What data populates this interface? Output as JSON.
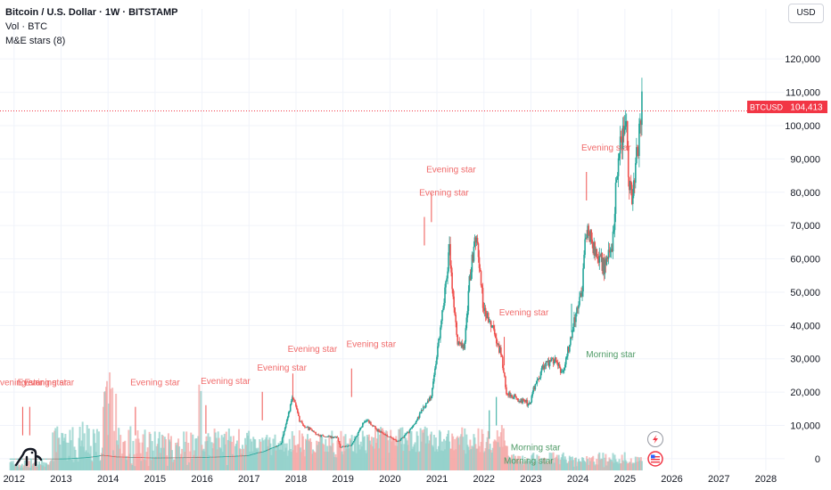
{
  "header": {
    "title": "Bitcoin / U.S. Dollar · 1W · BITSTAMP",
    "volume_label": "Vol · BTC",
    "indicator_label": "M&E stars (8)"
  },
  "currency_button": "USD",
  "price_badge": {
    "symbol": "BTCUSD",
    "value": "104,413"
  },
  "colors": {
    "up": "#26a69a",
    "down": "#ef5350",
    "evening_text": "#f06a6a",
    "morning_text": "#4e9a66",
    "price_line": "#f23645"
  },
  "chart_data": {
    "type": "candlestick",
    "title": "Bitcoin / U.S. Dollar · 1W · BITSTAMP",
    "y_ticks": [
      "0",
      "10,000",
      "20,000",
      "30,000",
      "40,000",
      "50,000",
      "60,000",
      "70,000",
      "80,000",
      "90,000",
      "100,000",
      "110,000",
      "120,000"
    ],
    "y_tick_values": [
      0,
      10000,
      20000,
      30000,
      40000,
      50000,
      60000,
      70000,
      80000,
      90000,
      100000,
      110000,
      120000
    ],
    "ylim": [
      -3500,
      127000
    ],
    "x_ticks": [
      "2012",
      "2013",
      "2014",
      "2015",
      "2016",
      "2017",
      "2018",
      "2019",
      "2020",
      "2021",
      "2022",
      "2023",
      "2024",
      "2025",
      "2026",
      "2027",
      "2028"
    ],
    "x_tick_values": [
      2012,
      2013,
      2014,
      2015,
      2016,
      2017,
      2018,
      2019,
      2020,
      2021,
      2022,
      2023,
      2024,
      2025,
      2026,
      2027,
      2028
    ],
    "xlim": [
      2011.7,
      2028.4
    ],
    "last_price": 104413,
    "price_path": [
      [
        2011.9,
        5
      ],
      [
        2013.0,
        13
      ],
      [
        2013.3,
        200
      ],
      [
        2013.9,
        1100
      ],
      [
        2014.2,
        600
      ],
      [
        2015.0,
        300
      ],
      [
        2016.0,
        430
      ],
      [
        2016.5,
        650
      ],
      [
        2017.0,
        1000
      ],
      [
        2017.4,
        2500
      ],
      [
        2017.7,
        4500
      ],
      [
        2017.96,
        19000
      ],
      [
        2018.1,
        11000
      ],
      [
        2018.5,
        7000
      ],
      [
        2018.9,
        6300
      ],
      [
        2018.96,
        3500
      ],
      [
        2019.2,
        4000
      ],
      [
        2019.5,
        12000
      ],
      [
        2019.8,
        8000
      ],
      [
        2020.2,
        5000
      ],
      [
        2020.5,
        9500
      ],
      [
        2020.9,
        19000
      ],
      [
        2021.0,
        29000
      ],
      [
        2021.1,
        40000
      ],
      [
        2021.28,
        63000
      ],
      [
        2021.45,
        35000
      ],
      [
        2021.6,
        33000
      ],
      [
        2021.75,
        60000
      ],
      [
        2021.85,
        67000
      ],
      [
        2022.0,
        46000
      ],
      [
        2022.2,
        40000
      ],
      [
        2022.4,
        30000
      ],
      [
        2022.5,
        20000
      ],
      [
        2022.85,
        17000
      ],
      [
        2023.0,
        16500
      ],
      [
        2023.1,
        22000
      ],
      [
        2023.3,
        28000
      ],
      [
        2023.5,
        30000
      ],
      [
        2023.7,
        26000
      ],
      [
        2023.95,
        42000
      ],
      [
        2024.1,
        50000
      ],
      [
        2024.2,
        70000
      ],
      [
        2024.4,
        62000
      ],
      [
        2024.6,
        58000
      ],
      [
        2024.75,
        63000
      ],
      [
        2024.9,
        95000
      ],
      [
        2025.05,
        100000
      ],
      [
        2025.1,
        82000
      ],
      [
        2025.2,
        80000
      ],
      [
        2025.3,
        95000
      ],
      [
        2025.38,
        104413
      ]
    ],
    "annotations": [
      {
        "label": "Evening star",
        "x": 2012.1,
        "y": 22000,
        "type": "evening"
      },
      {
        "label": "Evening star",
        "x": 2012.6,
        "y": 22000,
        "type": "evening"
      },
      {
        "label": "Evening star",
        "x": 2012.75,
        "y": 22000,
        "type": "evening"
      },
      {
        "label": "Evening star",
        "x": 2015.0,
        "y": 22000,
        "type": "evening"
      },
      {
        "label": "Evening star",
        "x": 2016.5,
        "y": 22500,
        "type": "evening"
      },
      {
        "label": "Evening star",
        "x": 2017.7,
        "y": 26500,
        "type": "evening"
      },
      {
        "label": "Evening star",
        "x": 2018.35,
        "y": 32000,
        "type": "evening"
      },
      {
        "label": "Evening star",
        "x": 2019.6,
        "y": 33500,
        "type": "evening"
      },
      {
        "label": "Evening star",
        "x": 2021.15,
        "y": 79000,
        "type": "evening"
      },
      {
        "label": "Evening star",
        "x": 2021.3,
        "y": 86000,
        "type": "evening"
      },
      {
        "label": "Evening star",
        "x": 2022.85,
        "y": 43000,
        "type": "evening"
      },
      {
        "label": "Evening star",
        "x": 2024.6,
        "y": 92500,
        "type": "evening"
      },
      {
        "label": "Morning star",
        "x": 2024.7,
        "y": 30500,
        "type": "morning"
      },
      {
        "label": "Morning star",
        "x": 2023.1,
        "y": 2500,
        "type": "morning"
      },
      {
        "label": "Morning star",
        "x": 2022.95,
        "y": -1500,
        "type": "morning"
      }
    ],
    "grid": true,
    "legend": "none"
  }
}
